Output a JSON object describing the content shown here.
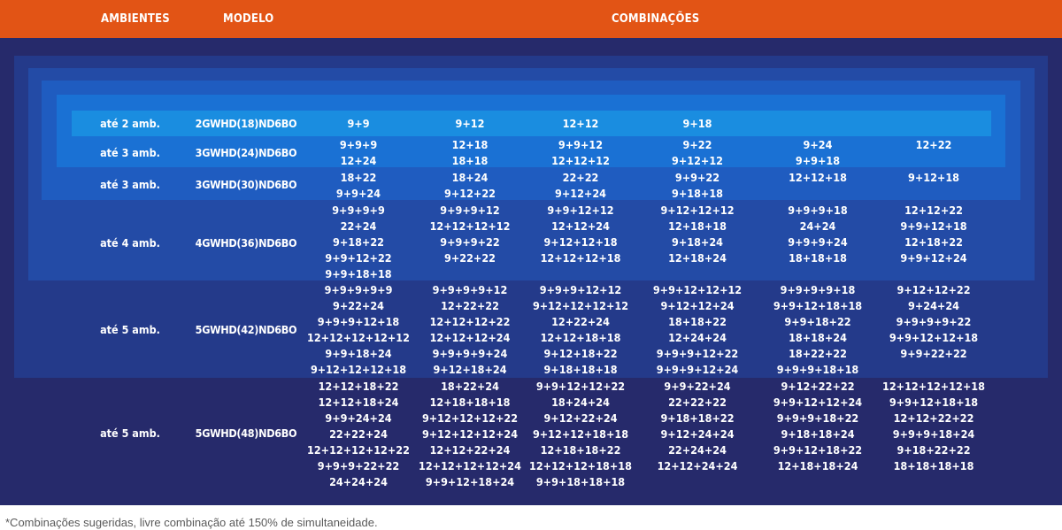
{
  "header": {
    "col_ambientes": "AMBIENTES",
    "col_modelo": "MODELO",
    "col_combinacoes": "COMBINAÇÕES"
  },
  "colors": {
    "header_orange": "#e25415",
    "panel_navy": "#262a6b",
    "layer_5amb": "#243a8a",
    "layer_4amb": "#234ba6",
    "layer_3amb_30": "#1f5cc0",
    "layer_3amb_24": "#1a71d4",
    "layer_2amb": "#1a8de0"
  },
  "rows": [
    {
      "ambientes": "até 2 amb.",
      "modelo": "2GWHD(18)ND6BO",
      "combinacoes": [
        [
          "9+9"
        ],
        [
          "9+12"
        ],
        [
          "12+12"
        ],
        [
          "9+18"
        ],
        [],
        []
      ]
    },
    {
      "ambientes": "até 3 amb.",
      "modelo": "3GWHD(24)ND6BO",
      "combinacoes": [
        [
          "9+9+9",
          "12+24"
        ],
        [
          "12+18",
          "18+18"
        ],
        [
          "9+9+12",
          "12+12+12"
        ],
        [
          "9+22",
          "9+12+12"
        ],
        [
          "9+24",
          "9+9+18"
        ],
        [
          "12+22"
        ]
      ]
    },
    {
      "ambientes": "até 3 amb.",
      "modelo": "3GWHD(30)ND6BO",
      "combinacoes": [
        [
          "18+22",
          "9+9+24"
        ],
        [
          "18+24",
          "9+12+22"
        ],
        [
          "22+22",
          "9+12+24"
        ],
        [
          "9+9+22",
          "9+18+18"
        ],
        [
          "12+12+18"
        ],
        [
          "9+12+18"
        ]
      ]
    },
    {
      "ambientes": "até 4 amb.",
      "modelo": "4GWHD(36)ND6BO",
      "combinacoes": [
        [
          "9+9+9+9",
          "22+24",
          "9+18+22",
          "9+9+12+22",
          "9+9+18+18"
        ],
        [
          "9+9+9+12",
          "12+12+12+12",
          "9+9+9+22",
          "9+22+22"
        ],
        [
          "9+9+12+12",
          "12+12+24",
          "9+12+12+18",
          "12+12+12+18"
        ],
        [
          "9+12+12+12",
          "12+18+18",
          "9+18+24",
          "12+18+24"
        ],
        [
          "9+9+9+18",
          "24+24",
          "9+9+9+24",
          "18+18+18"
        ],
        [
          "12+12+22",
          "9+9+12+18",
          "12+18+22",
          "9+9+12+24"
        ]
      ]
    },
    {
      "ambientes": "até 5 amb.",
      "modelo": "5GWHD(42)ND6BO",
      "combinacoes": [
        [
          "9+9+9+9+9",
          "9+22+24",
          "9+9+9+12+18",
          "12+12+12+12+12",
          "9+9+18+24",
          "9+12+12+12+18"
        ],
        [
          "9+9+9+9+12",
          "12+22+22",
          "12+12+12+22",
          "12+12+12+24",
          "9+9+9+9+24",
          "9+12+18+24"
        ],
        [
          "9+9+9+12+12",
          "9+12+12+12+12",
          "12+22+24",
          "12+12+18+18",
          "9+12+18+22",
          "9+18+18+18"
        ],
        [
          "9+9+12+12+12",
          "9+12+12+24",
          "18+18+22",
          "12+24+24",
          "9+9+9+12+22",
          "9+9+9+12+24"
        ],
        [
          "9+9+9+9+18",
          "9+9+12+18+18",
          "9+9+18+22",
          "18+18+24",
          "18+22+22",
          "9+9+9+18+18"
        ],
        [
          "9+12+12+22",
          "9+24+24",
          "9+9+9+9+22",
          "9+9+12+12+18",
          "9+9+22+22"
        ]
      ]
    },
    {
      "ambientes": "até 5 amb.",
      "modelo": "5GWHD(48)ND6BO",
      "combinacoes": [
        [
          "12+12+18+22",
          "12+12+18+24",
          "9+9+24+24",
          "22+22+24",
          "12+12+12+12+22",
          "9+9+9+22+22",
          "24+24+24"
        ],
        [
          "18+22+24",
          "12+18+18+18",
          "9+12+12+12+22",
          "9+12+12+12+24",
          "12+12+22+24",
          "12+12+12+12+24",
          "9+9+12+18+24"
        ],
        [
          "9+9+12+12+22",
          "18+24+24",
          "9+12+22+24",
          "9+12+12+18+18",
          "12+18+18+22",
          "12+12+12+18+18",
          "9+9+18+18+18"
        ],
        [
          "9+9+22+24",
          "22+22+22",
          "9+18+18+22",
          "9+12+24+24",
          "22+24+24",
          "12+12+24+24"
        ],
        [
          "9+12+22+22",
          "9+9+12+12+24",
          "9+9+9+18+22",
          "9+18+18+24",
          "9+9+12+18+22",
          "12+18+18+24"
        ],
        [
          "12+12+12+12+18",
          "9+9+12+18+18",
          "12+12+22+22",
          "9+9+9+18+24",
          "9+18+22+22",
          "18+18+18+18"
        ]
      ]
    }
  ],
  "footnote": "*Combinações sugeridas, livre combinação até 150% de simultaneidade."
}
